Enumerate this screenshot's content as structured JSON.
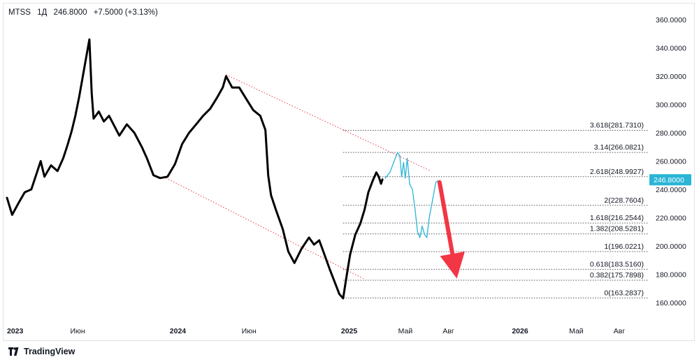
{
  "header": {
    "symbol": "MTSS",
    "interval": "1Д",
    "price": "246.8000",
    "change": "+7.5000 (+3.13%)"
  },
  "footer": {
    "brand": "TradingView",
    "logo_icon": "tradingview-logo-icon"
  },
  "colors": {
    "price_line": "#000000",
    "projection": "#2ab5d5",
    "arrow": "#f23645",
    "channel": "#f23645",
    "fib_line": "#555555",
    "badge_bg": "#2ab5d5"
  },
  "chart_data": {
    "type": "line",
    "y_axis": {
      "min": 160,
      "max": 360,
      "ticks": [
        "160.0000",
        "180.0000",
        "200.0000",
        "220.0000",
        "240.0000",
        "260.0000",
        "280.0000",
        "300.0000",
        "320.0000",
        "340.0000",
        "360.0000"
      ],
      "position": "right"
    },
    "x_axis": {
      "labels": [
        {
          "text": "2023",
          "date": "2023-01-01",
          "bold": true
        },
        {
          "text": "Июн",
          "date": "2023-06-01",
          "bold": false
        },
        {
          "text": "2024",
          "date": "2024-01-01",
          "bold": true
        },
        {
          "text": "Июн",
          "date": "2024-06-01",
          "bold": false
        },
        {
          "text": "2025",
          "date": "2025-01-01",
          "bold": true
        },
        {
          "text": "Май",
          "date": "2025-05-01",
          "bold": false
        },
        {
          "text": "Авг",
          "date": "2025-08-01",
          "bold": false
        },
        {
          "text": "2026",
          "date": "2026-01-01",
          "bold": true
        },
        {
          "text": "Май",
          "date": "2026-05-01",
          "bold": false
        },
        {
          "text": "Авг",
          "date": "2026-08-01",
          "bold": false
        }
      ]
    },
    "current_price_label": "246.8000",
    "current_price": 246.8,
    "series": [
      {
        "kind": "price",
        "points": [
          [
            "2023-01-01",
            234
          ],
          [
            "2023-01-12",
            222
          ],
          [
            "2023-01-25",
            230
          ],
          [
            "2023-02-08",
            238
          ],
          [
            "2023-02-22",
            240
          ],
          [
            "2023-03-06",
            252
          ],
          [
            "2023-03-14",
            260
          ],
          [
            "2023-03-22",
            249
          ],
          [
            "2023-04-05",
            257
          ],
          [
            "2023-04-19",
            253
          ],
          [
            "2023-05-01",
            262
          ],
          [
            "2023-05-10",
            271
          ],
          [
            "2023-05-19",
            281
          ],
          [
            "2023-05-27",
            292
          ],
          [
            "2023-06-04",
            305
          ],
          [
            "2023-06-11",
            318
          ],
          [
            "2023-06-20",
            335
          ],
          [
            "2023-06-26",
            346
          ],
          [
            "2023-07-01",
            308
          ],
          [
            "2023-07-05",
            290
          ],
          [
            "2023-07-16",
            295
          ],
          [
            "2023-07-27",
            288
          ],
          [
            "2023-08-07",
            292
          ],
          [
            "2023-08-18",
            285
          ],
          [
            "2023-08-29",
            278
          ],
          [
            "2023-09-14",
            286
          ],
          [
            "2023-09-30",
            280
          ],
          [
            "2023-10-16",
            270
          ],
          [
            "2023-10-27",
            262
          ],
          [
            "2023-11-10",
            250
          ],
          [
            "2023-11-24",
            248
          ],
          [
            "2023-12-10",
            249
          ],
          [
            "2023-12-26",
            258
          ],
          [
            "2024-01-10",
            272
          ],
          [
            "2024-01-25",
            280
          ],
          [
            "2024-02-09",
            286
          ],
          [
            "2024-02-24",
            292
          ],
          [
            "2024-03-10",
            297
          ],
          [
            "2024-03-25",
            305
          ],
          [
            "2024-04-06",
            312
          ],
          [
            "2024-04-13",
            320
          ],
          [
            "2024-04-26",
            312
          ],
          [
            "2024-05-11",
            312
          ],
          [
            "2024-05-26",
            304
          ],
          [
            "2024-06-10",
            296
          ],
          [
            "2024-06-25",
            292
          ],
          [
            "2024-07-06",
            282
          ],
          [
            "2024-07-12",
            250
          ],
          [
            "2024-07-18",
            236
          ],
          [
            "2024-07-28",
            226
          ],
          [
            "2024-08-12",
            212
          ],
          [
            "2024-08-24",
            196
          ],
          [
            "2024-09-06",
            188
          ],
          [
            "2024-09-21",
            198
          ],
          [
            "2024-10-07",
            206
          ],
          [
            "2024-10-18",
            201
          ],
          [
            "2024-10-29",
            204
          ],
          [
            "2024-11-09",
            194
          ],
          [
            "2024-11-20",
            184
          ],
          [
            "2024-12-04",
            172
          ],
          [
            "2024-12-11",
            166
          ],
          [
            "2024-12-19",
            163
          ],
          [
            "2024-12-26",
            178
          ],
          [
            "2025-01-03",
            194
          ],
          [
            "2025-01-14",
            208
          ],
          [
            "2025-01-25",
            216
          ],
          [
            "2025-02-03",
            226
          ],
          [
            "2025-02-11",
            238
          ],
          [
            "2025-02-20",
            246
          ],
          [
            "2025-02-28",
            252
          ],
          [
            "2025-03-05",
            249
          ],
          [
            "2025-03-10",
            244
          ],
          [
            "2025-03-13",
            247
          ]
        ]
      },
      {
        "kind": "projection",
        "points": [
          [
            "2025-03-19",
            248
          ],
          [
            "2025-03-29",
            252
          ],
          [
            "2025-04-07",
            260
          ],
          [
            "2025-04-14",
            266
          ],
          [
            "2025-04-19",
            264
          ],
          [
            "2025-04-23",
            249
          ],
          [
            "2025-04-27",
            259
          ],
          [
            "2025-05-01",
            248
          ],
          [
            "2025-05-05",
            262
          ],
          [
            "2025-05-10",
            244
          ],
          [
            "2025-05-16",
            240
          ],
          [
            "2025-05-22",
            225
          ],
          [
            "2025-05-27",
            210
          ],
          [
            "2025-06-01",
            206
          ],
          [
            "2025-06-06",
            214
          ],
          [
            "2025-06-11",
            208
          ],
          [
            "2025-06-16",
            206
          ],
          [
            "2025-06-21",
            220
          ],
          [
            "2025-06-29",
            234
          ],
          [
            "2025-07-05",
            245
          ],
          [
            "2025-07-09",
            246
          ]
        ]
      }
    ],
    "trend_lines": [
      {
        "from": [
          "2024-04-13",
          321
        ],
        "to": [
          "2025-06-24",
          253
        ]
      },
      {
        "from": [
          "2023-12-01",
          249
        ],
        "to": [
          "2025-01-31",
          177
        ]
      }
    ],
    "arrow": {
      "from": [
        "2025-07-13",
        245
      ],
      "to": [
        "2025-08-19",
        177
      ]
    },
    "fib_levels": [
      {
        "label": "3.618(281.7310)",
        "value": 281.731
      },
      {
        "label": "3.14(266.0821)",
        "value": 266.0821
      },
      {
        "label": "2.618(248.9927)",
        "value": 248.9927
      },
      {
        "label": "2(228.7604)",
        "value": 228.7604
      },
      {
        "label": "1.618(216.2544)",
        "value": 216.2544
      },
      {
        "label": "1.382(208.5281)",
        "value": 208.5281
      },
      {
        "label": "1(196.0221)",
        "value": 196.0221
      },
      {
        "label": "0.618(183.5160)",
        "value": 183.516
      },
      {
        "label": "0.382(175.7898)",
        "value": 175.7898
      },
      {
        "label": "0(163.2837)",
        "value": 163.2837
      }
    ],
    "fib_start_date": "2024-12-19",
    "grid": false
  }
}
